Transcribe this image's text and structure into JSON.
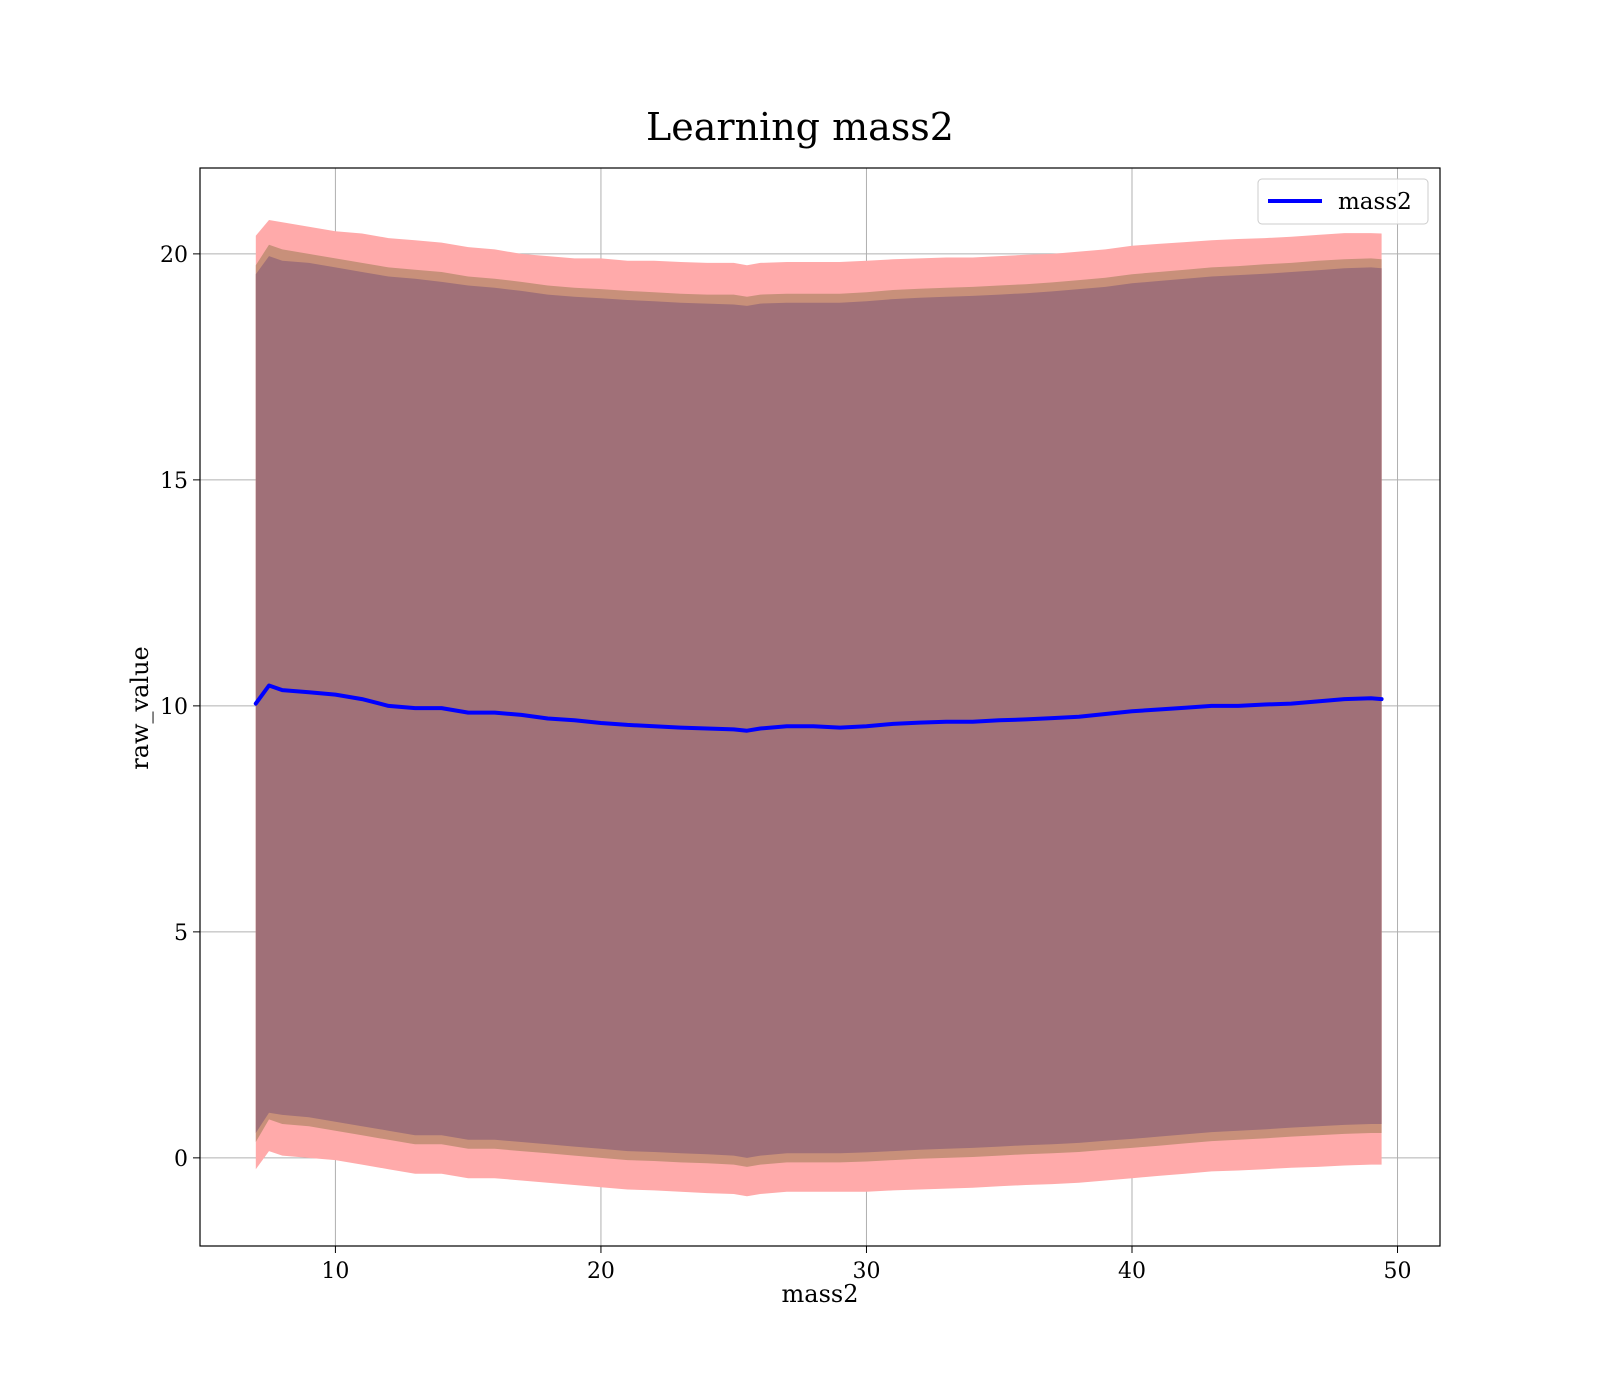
{
  "chart_data": {
    "type": "area",
    "title": "Learning mass2",
    "xlabel": "mass2",
    "ylabel": "raw_value",
    "xlim": [
      4.9,
      51.6
    ],
    "ylim": [
      -1.95,
      21.9
    ],
    "xticks": [
      10,
      20,
      30,
      40,
      50
    ],
    "yticks": [
      0,
      5,
      10,
      15,
      20
    ],
    "grid": true,
    "legend_position": "top-right",
    "colors": {
      "mean_line": "#0000ff",
      "band_outer": "#ffaaaa",
      "band_middle": "#c8907a",
      "band_inner": "#a07078",
      "grid": "#b0b0b0"
    },
    "series": [
      {
        "name": "mass2",
        "x": [
          7.0,
          7.5,
          8.0,
          9.0,
          10.0,
          11.0,
          12.0,
          13.0,
          14.0,
          15.0,
          16.0,
          17.0,
          18.0,
          19.0,
          20.0,
          21.0,
          22.0,
          23.0,
          24.0,
          25.0,
          25.5,
          26.0,
          27.0,
          28.0,
          29.0,
          30.0,
          31.0,
          32.0,
          33.0,
          34.0,
          35.0,
          36.0,
          37.0,
          38.0,
          39.0,
          40.0,
          41.0,
          42.0,
          43.0,
          44.0,
          45.0,
          46.0,
          47.0,
          48.0,
          49.0,
          49.4
        ],
        "y": [
          10.05,
          10.45,
          10.35,
          10.3,
          10.25,
          10.15,
          10.0,
          9.95,
          9.95,
          9.85,
          9.85,
          9.8,
          9.72,
          9.68,
          9.62,
          9.58,
          9.55,
          9.52,
          9.5,
          9.48,
          9.45,
          9.5,
          9.55,
          9.55,
          9.52,
          9.55,
          9.6,
          9.63,
          9.65,
          9.65,
          9.68,
          9.7,
          9.73,
          9.76,
          9.82,
          9.88,
          9.92,
          9.96,
          10.0,
          10.0,
          10.03,
          10.05,
          10.1,
          10.15,
          10.17,
          10.15
        ]
      }
    ],
    "bands": [
      {
        "level": "outer",
        "x": [
          7.0,
          7.5,
          8.0,
          9.0,
          10.0,
          11.0,
          12.0,
          13.0,
          14.0,
          15.0,
          16.0,
          17.0,
          18.0,
          19.0,
          20.0,
          21.0,
          22.0,
          23.0,
          24.0,
          25.0,
          25.5,
          26.0,
          27.0,
          28.0,
          29.0,
          30.0,
          31.0,
          32.0,
          33.0,
          34.0,
          35.0,
          36.0,
          37.0,
          38.0,
          39.0,
          40.0,
          41.0,
          42.0,
          43.0,
          44.0,
          45.0,
          46.0,
          47.0,
          48.0,
          49.0,
          49.4
        ],
        "upper": [
          20.4,
          20.75,
          20.7,
          20.6,
          20.5,
          20.45,
          20.35,
          20.3,
          20.25,
          20.15,
          20.1,
          20.0,
          19.95,
          19.9,
          19.9,
          19.85,
          19.85,
          19.82,
          19.8,
          19.8,
          19.75,
          19.8,
          19.82,
          19.82,
          19.82,
          19.85,
          19.88,
          19.9,
          19.92,
          19.92,
          19.95,
          19.98,
          20.0,
          20.05,
          20.1,
          20.18,
          20.22,
          20.26,
          20.3,
          20.33,
          20.35,
          20.38,
          20.42,
          20.46,
          20.46,
          20.45
        ],
        "lower": [
          -0.25,
          0.15,
          0.05,
          0.0,
          -0.05,
          -0.15,
          -0.25,
          -0.35,
          -0.35,
          -0.45,
          -0.45,
          -0.5,
          -0.55,
          -0.6,
          -0.65,
          -0.7,
          -0.72,
          -0.75,
          -0.78,
          -0.8,
          -0.85,
          -0.8,
          -0.75,
          -0.75,
          -0.75,
          -0.75,
          -0.72,
          -0.7,
          -0.68,
          -0.66,
          -0.63,
          -0.6,
          -0.58,
          -0.55,
          -0.5,
          -0.45,
          -0.4,
          -0.35,
          -0.3,
          -0.28,
          -0.25,
          -0.22,
          -0.2,
          -0.17,
          -0.15,
          -0.15
        ]
      },
      {
        "level": "middle",
        "x": [
          7.0,
          7.5,
          8.0,
          9.0,
          10.0,
          11.0,
          12.0,
          13.0,
          14.0,
          15.0,
          16.0,
          17.0,
          18.0,
          19.0,
          20.0,
          21.0,
          22.0,
          23.0,
          24.0,
          25.0,
          25.5,
          26.0,
          27.0,
          28.0,
          29.0,
          30.0,
          31.0,
          32.0,
          33.0,
          34.0,
          35.0,
          36.0,
          37.0,
          38.0,
          39.0,
          40.0,
          41.0,
          42.0,
          43.0,
          44.0,
          45.0,
          46.0,
          47.0,
          48.0,
          49.0,
          49.4
        ],
        "upper": [
          19.75,
          20.2,
          20.1,
          20.0,
          19.9,
          19.8,
          19.7,
          19.65,
          19.6,
          19.5,
          19.45,
          19.38,
          19.3,
          19.25,
          19.22,
          19.18,
          19.15,
          19.12,
          19.1,
          19.1,
          19.05,
          19.1,
          19.12,
          19.12,
          19.12,
          19.15,
          19.2,
          19.23,
          19.25,
          19.27,
          19.3,
          19.33,
          19.37,
          19.42,
          19.47,
          19.55,
          19.6,
          19.65,
          19.7,
          19.73,
          19.77,
          19.8,
          19.85,
          19.88,
          19.9,
          19.88
        ],
        "lower": [
          0.35,
          0.85,
          0.75,
          0.7,
          0.6,
          0.5,
          0.4,
          0.3,
          0.3,
          0.2,
          0.2,
          0.15,
          0.1,
          0.05,
          0.0,
          -0.05,
          -0.07,
          -0.1,
          -0.12,
          -0.15,
          -0.2,
          -0.15,
          -0.1,
          -0.1,
          -0.1,
          -0.08,
          -0.05,
          -0.02,
          0.0,
          0.02,
          0.05,
          0.08,
          0.1,
          0.13,
          0.18,
          0.22,
          0.27,
          0.32,
          0.37,
          0.4,
          0.43,
          0.47,
          0.5,
          0.53,
          0.55,
          0.55
        ]
      },
      {
        "level": "inner",
        "x": [
          7.0,
          7.5,
          8.0,
          9.0,
          10.0,
          11.0,
          12.0,
          13.0,
          14.0,
          15.0,
          16.0,
          17.0,
          18.0,
          19.0,
          20.0,
          21.0,
          22.0,
          23.0,
          24.0,
          25.0,
          25.5,
          26.0,
          27.0,
          28.0,
          29.0,
          30.0,
          31.0,
          32.0,
          33.0,
          34.0,
          35.0,
          36.0,
          37.0,
          38.0,
          39.0,
          40.0,
          41.0,
          42.0,
          43.0,
          44.0,
          45.0,
          46.0,
          47.0,
          48.0,
          49.0,
          49.4
        ],
        "upper": [
          19.55,
          19.95,
          19.85,
          19.8,
          19.7,
          19.6,
          19.5,
          19.45,
          19.38,
          19.3,
          19.25,
          19.18,
          19.1,
          19.05,
          19.02,
          18.98,
          18.95,
          18.92,
          18.9,
          18.88,
          18.85,
          18.9,
          18.92,
          18.92,
          18.92,
          18.95,
          19.0,
          19.03,
          19.05,
          19.07,
          19.1,
          19.13,
          19.17,
          19.22,
          19.27,
          19.35,
          19.4,
          19.45,
          19.5,
          19.53,
          19.56,
          19.6,
          19.64,
          19.68,
          19.7,
          19.68
        ],
        "lower": [
          0.55,
          1.0,
          0.95,
          0.9,
          0.8,
          0.7,
          0.6,
          0.5,
          0.5,
          0.4,
          0.4,
          0.35,
          0.3,
          0.25,
          0.2,
          0.15,
          0.13,
          0.1,
          0.08,
          0.05,
          0.0,
          0.05,
          0.1,
          0.1,
          0.1,
          0.12,
          0.15,
          0.18,
          0.2,
          0.22,
          0.25,
          0.28,
          0.3,
          0.33,
          0.38,
          0.42,
          0.47,
          0.52,
          0.57,
          0.6,
          0.63,
          0.67,
          0.7,
          0.73,
          0.75,
          0.75
        ]
      }
    ]
  }
}
